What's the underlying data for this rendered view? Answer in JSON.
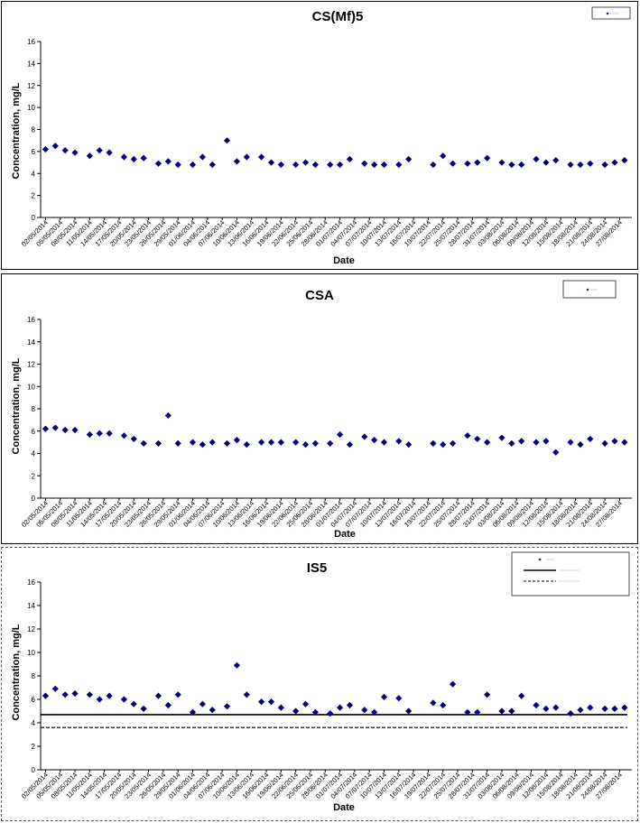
{
  "colors": {
    "marker": "#00007f",
    "axis": "#000000",
    "line": "#000000"
  },
  "dates": [
    "02/05/2014",
    "05/05/2014",
    "08/05/2014",
    "11/05/2014",
    "14/05/2014",
    "17/05/2014",
    "20/05/2014",
    "23/05/2014",
    "26/05/2014",
    "29/05/2014",
    "01/06/2014",
    "04/06/2014",
    "07/06/2014",
    "10/06/2014",
    "13/06/2014",
    "16/06/2014",
    "19/06/2014",
    "22/06/2014",
    "25/06/2014",
    "28/06/2014",
    "01/07/2014",
    "04/07/2014",
    "07/07/2014",
    "10/07/2014",
    "13/07/2014",
    "16/07/2014",
    "19/07/2014",
    "22/07/2014",
    "25/07/2014",
    "28/07/2014",
    "31/07/2014",
    "03/08/2014",
    "06/08/2014",
    "09/08/2014",
    "12/08/2014",
    "15/08/2014",
    "18/08/2014",
    "21/08/2014",
    "24/08/2014",
    "27/08/2014"
  ],
  "chart_data": [
    {
      "type": "scatter",
      "title": "CS(Mf)5",
      "xlabel": "Date",
      "ylabel": "Concentration, mg/L",
      "ylim": [
        0,
        16
      ],
      "yticks": [
        0,
        2,
        4,
        6,
        8,
        10,
        12,
        14,
        16
      ],
      "grid": false,
      "legend_position": "top-right",
      "series": [
        {
          "marker": "diamond",
          "x": [
            "02/05/2014",
            "04/05/2014",
            "06/05/2014",
            "08/05/2014",
            "11/05/2014",
            "13/05/2014",
            "15/05/2014",
            "18/05/2014",
            "20/05/2014",
            "22/05/2014",
            "25/05/2014",
            "27/05/2014",
            "29/05/2014",
            "01/06/2014",
            "03/06/2014",
            "05/06/2014",
            "08/06/2014",
            "10/06/2014",
            "12/06/2014",
            "15/06/2014",
            "17/06/2014",
            "19/06/2014",
            "22/06/2014",
            "24/06/2014",
            "26/06/2014",
            "29/06/2014",
            "01/07/2014",
            "03/07/2014",
            "06/07/2014",
            "08/07/2014",
            "10/07/2014",
            "13/07/2014",
            "15/07/2014",
            "20/07/2014",
            "22/07/2014",
            "24/07/2014",
            "27/07/2014",
            "29/07/2014",
            "31/07/2014",
            "03/08/2014",
            "05/08/2014",
            "07/08/2014",
            "10/08/2014",
            "12/08/2014",
            "14/08/2014",
            "17/08/2014",
            "19/08/2014",
            "21/08/2014",
            "24/08/2014",
            "26/08/2014",
            "28/08/2014"
          ],
          "y": [
            6.2,
            6.5,
            6.1,
            5.9,
            5.6,
            6.1,
            5.9,
            5.5,
            5.3,
            5.4,
            4.9,
            5.1,
            4.8,
            4.8,
            5.5,
            4.8,
            7.0,
            5.1,
            5.5,
            5.5,
            5.0,
            4.8,
            4.8,
            5.0,
            4.8,
            4.8,
            4.8,
            5.3,
            4.9,
            4.8,
            4.8,
            4.8,
            5.3,
            4.8,
            5.6,
            4.9,
            4.9,
            5.0,
            5.4,
            5.0,
            4.8,
            4.8,
            5.3,
            5.0,
            5.2,
            4.8,
            4.8,
            4.9,
            4.8,
            5.0,
            5.2
          ]
        }
      ]
    },
    {
      "type": "scatter",
      "title": "CSA",
      "xlabel": "Date",
      "ylabel": "Concentration, mg/L",
      "ylim": [
        0,
        16
      ],
      "yticks": [
        0,
        2,
        4,
        6,
        8,
        10,
        12,
        14,
        16
      ],
      "grid": false,
      "legend_position": "top-right",
      "series": [
        {
          "marker": "diamond",
          "x": [
            "02/05/2014",
            "04/05/2014",
            "06/05/2014",
            "08/05/2014",
            "11/05/2014",
            "13/05/2014",
            "15/05/2014",
            "18/05/2014",
            "20/05/2014",
            "22/05/2014",
            "25/05/2014",
            "27/05/2014",
            "29/05/2014",
            "01/06/2014",
            "03/06/2014",
            "05/06/2014",
            "08/06/2014",
            "10/06/2014",
            "12/06/2014",
            "15/06/2014",
            "17/06/2014",
            "19/06/2014",
            "22/06/2014",
            "24/06/2014",
            "26/06/2014",
            "29/06/2014",
            "01/07/2014",
            "03/07/2014",
            "06/07/2014",
            "08/07/2014",
            "10/07/2014",
            "13/07/2014",
            "15/07/2014",
            "20/07/2014",
            "22/07/2014",
            "24/07/2014",
            "27/07/2014",
            "29/07/2014",
            "31/07/2014",
            "03/08/2014",
            "05/08/2014",
            "07/08/2014",
            "10/08/2014",
            "12/08/2014",
            "14/08/2014",
            "17/08/2014",
            "19/08/2014",
            "21/08/2014",
            "24/08/2014",
            "26/08/2014",
            "28/08/2014"
          ],
          "y": [
            6.2,
            6.3,
            6.1,
            6.1,
            5.7,
            5.8,
            5.8,
            5.6,
            5.3,
            4.9,
            4.9,
            7.4,
            4.9,
            5.0,
            4.8,
            5.0,
            4.9,
            5.2,
            4.8,
            5.0,
            5.0,
            5.0,
            5.0,
            4.8,
            4.9,
            4.9,
            5.7,
            4.8,
            5.5,
            5.2,
            5.0,
            5.1,
            4.8,
            4.9,
            4.8,
            4.9,
            5.6,
            5.3,
            5.0,
            5.4,
            4.9,
            5.1,
            5.0,
            5.1,
            4.1,
            5.0,
            4.8,
            5.3,
            4.9,
            5.1,
            5.0
          ]
        }
      ]
    },
    {
      "type": "scatter",
      "title": "IS5",
      "xlabel": "Date",
      "ylabel": "Concentration, mg/L",
      "ylim": [
        0,
        16
      ],
      "yticks": [
        0,
        2,
        4,
        6,
        8,
        10,
        12,
        14,
        16
      ],
      "grid": false,
      "legend_position": "top-right",
      "hlines": [
        {
          "y": 4.7,
          "style": "solid"
        },
        {
          "y": 3.6,
          "style": "dashed"
        }
      ],
      "series": [
        {
          "marker": "diamond",
          "x": [
            "02/05/2014",
            "04/05/2014",
            "06/05/2014",
            "08/05/2014",
            "11/05/2014",
            "13/05/2014",
            "15/05/2014",
            "18/05/2014",
            "20/05/2014",
            "22/05/2014",
            "25/05/2014",
            "27/05/2014",
            "29/05/2014",
            "01/06/2014",
            "03/06/2014",
            "05/06/2014",
            "08/06/2014",
            "10/06/2014",
            "12/06/2014",
            "15/06/2014",
            "17/06/2014",
            "19/06/2014",
            "22/06/2014",
            "24/06/2014",
            "26/06/2014",
            "29/06/2014",
            "01/07/2014",
            "03/07/2014",
            "06/07/2014",
            "08/07/2014",
            "10/07/2014",
            "13/07/2014",
            "15/07/2014",
            "20/07/2014",
            "22/07/2014",
            "24/07/2014",
            "27/07/2014",
            "29/07/2014",
            "31/07/2014",
            "03/08/2014",
            "05/08/2014",
            "07/08/2014",
            "10/08/2014",
            "12/08/2014",
            "14/08/2014",
            "17/08/2014",
            "19/08/2014",
            "21/08/2014",
            "24/08/2014",
            "26/08/2014",
            "28/08/2014"
          ],
          "y": [
            6.3,
            6.9,
            6.4,
            6.5,
            6.4,
            6.0,
            6.3,
            6.0,
            5.6,
            5.2,
            6.3,
            5.5,
            6.4,
            4.9,
            5.6,
            5.1,
            5.4,
            8.9,
            6.4,
            5.8,
            5.8,
            5.3,
            5.0,
            5.6,
            4.9,
            4.8,
            5.3,
            5.5,
            5.1,
            4.9,
            6.2,
            6.1,
            5.0,
            5.7,
            5.5,
            7.3,
            4.9,
            4.9,
            6.4,
            5.0,
            5.0,
            6.3,
            5.5,
            5.2,
            5.3,
            4.8,
            5.1,
            5.3,
            5.2,
            5.2,
            5.3
          ]
        }
      ]
    }
  ]
}
